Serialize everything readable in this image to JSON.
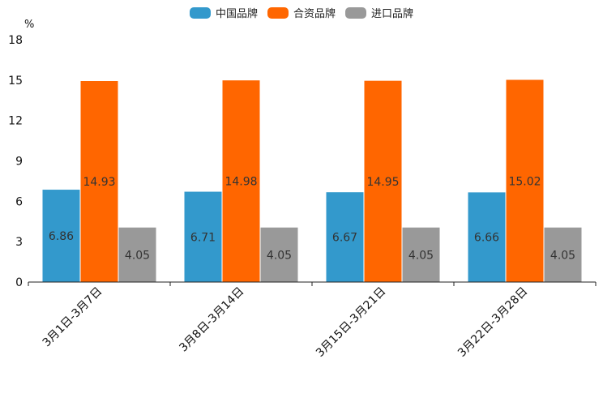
{
  "chart_data": {
    "type": "bar",
    "unit": "%",
    "categories": [
      "3月1日-3月7日",
      "3月8日-3月14日",
      "3月15日-3月21日",
      "3月22日-3月28日"
    ],
    "series": [
      {
        "name": "中国品牌",
        "color": "#3399cc",
        "values": [
          6.86,
          6.71,
          6.67,
          6.66
        ],
        "labels": [
          "6.86",
          "6.71",
          "6.67",
          "6.66"
        ]
      },
      {
        "name": "合资品牌",
        "color": "#ff6600",
        "values": [
          14.93,
          14.98,
          14.95,
          15.02
        ],
        "labels": [
          "14.93",
          "14.98",
          "14.95",
          "15.02"
        ]
      },
      {
        "name": "进口品牌",
        "color": "#999999",
        "values": [
          4.05,
          4.05,
          4.05,
          4.05
        ],
        "labels": [
          "4.05",
          "4.05",
          "4.05",
          "4.05"
        ]
      }
    ],
    "ylim": [
      0,
      18
    ],
    "yticks": [
      0,
      3,
      6,
      9,
      12,
      15,
      18
    ],
    "ytick_labels": [
      "0",
      "3",
      "6",
      "9",
      "12",
      "15",
      "18"
    ],
    "legend_position": "top-center",
    "grid": false
  }
}
